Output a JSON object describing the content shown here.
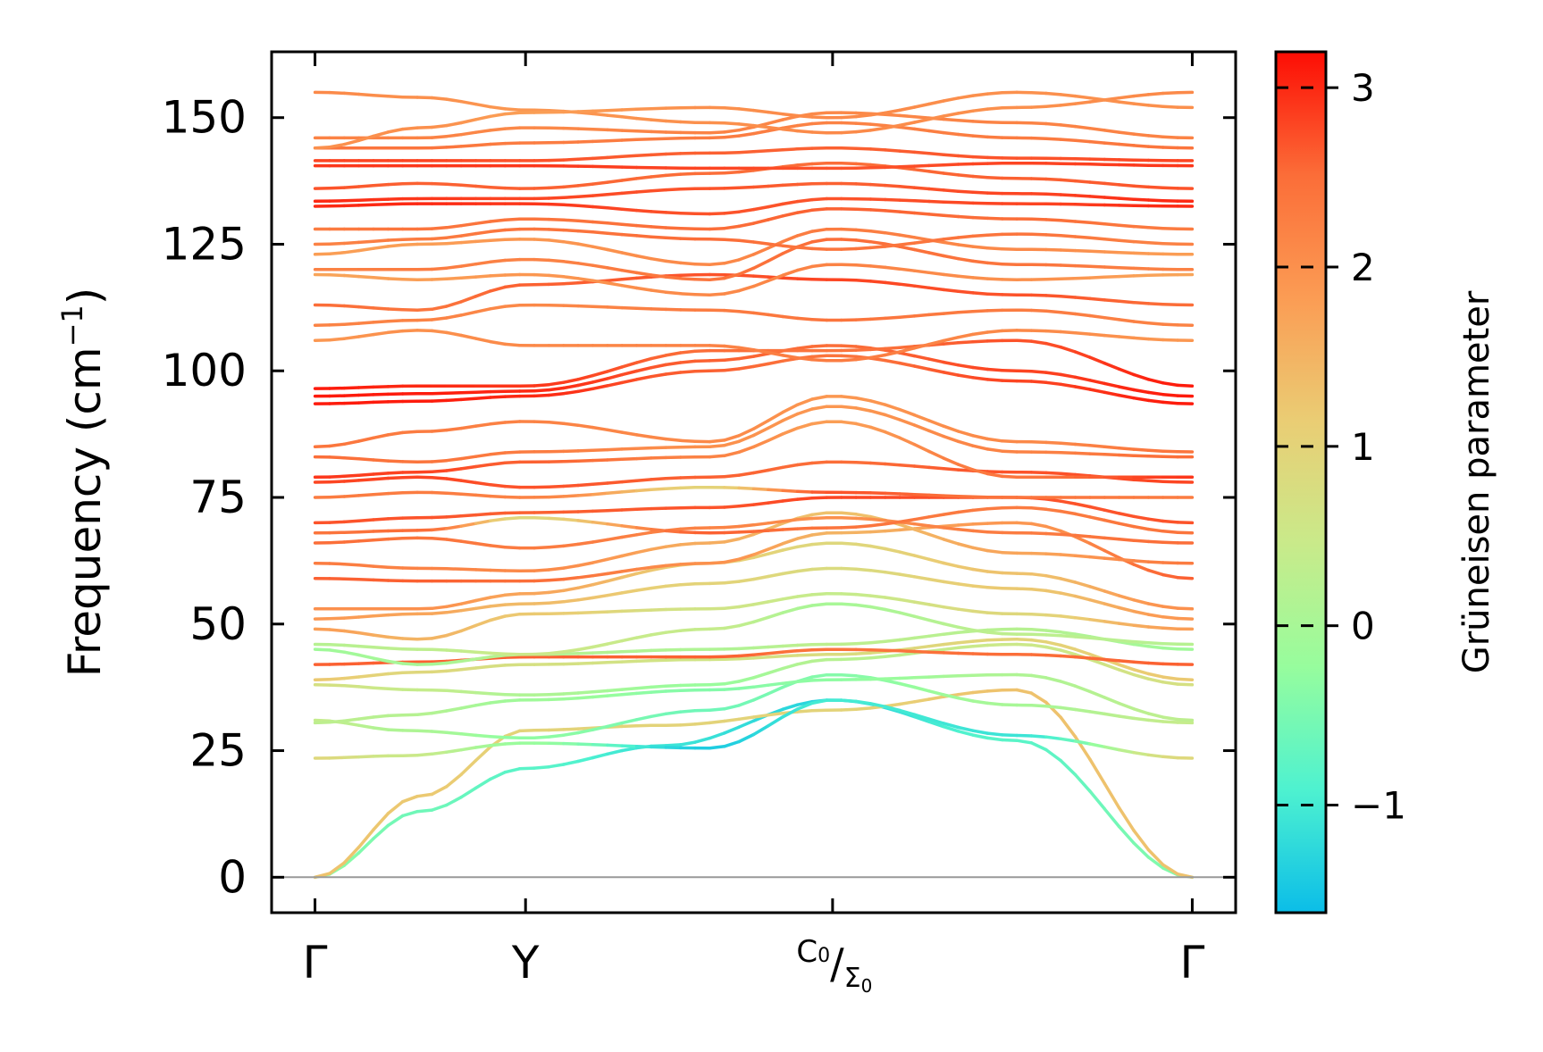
{
  "chart_data": {
    "type": "line",
    "xlabel": "",
    "ylabel": "Frequency (cm",
    "ylabel_sup": "−1",
    "ylabel_close": ")",
    "ylim": [
      -7,
      163
    ],
    "yticks": [
      0,
      25,
      50,
      75,
      100,
      125,
      150
    ],
    "high_symmetry_points": [
      {
        "label": "Γ",
        "pos": 0.0
      },
      {
        "label": "Y",
        "pos": 0.24
      },
      {
        "label": "C",
        "sub": "0",
        "label2": "Σ",
        "sub2": "0",
        "separator": "/",
        "pos": 0.59
      },
      {
        "label": "Γ",
        "pos": 1.0
      }
    ],
    "grid": false,
    "colorbar": {
      "label": "Grüneisen parameter",
      "range": [
        -1.6,
        3.2
      ],
      "ticks": [
        -1,
        0,
        1,
        2,
        3
      ],
      "tick_labels": [
        "−1",
        "0",
        "1",
        "2",
        "3"
      ],
      "colormap": [
        "#0bbde8",
        "#4ef2d0",
        "#97fd9d",
        "#c9ea8a",
        "#eacd74",
        "#fb9c54",
        "#fb6d38",
        "#fd0d04"
      ]
    },
    "series": [
      {
        "x": [
          0,
          0.12,
          0.24,
          0.4,
          0.59,
          0.8,
          1.0
        ],
        "y": [
          0,
          13,
          21.5,
          26,
          35,
          27,
          0
        ],
        "g": [
          -0.3,
          -0.6,
          -0.8,
          -1.1,
          -1.3,
          -0.8,
          -0.4
        ]
      },
      {
        "x": [
          0,
          0.12,
          0.24,
          0.4,
          0.59,
          0.8,
          1.0
        ],
        "y": [
          0,
          16,
          29,
          30,
          33,
          37,
          0
        ],
        "g": [
          1.3,
          1.2,
          1.0,
          1.0,
          1.0,
          1.3,
          1.3
        ]
      },
      {
        "x": [
          0,
          0.1,
          0.24,
          0.45,
          0.59,
          0.8,
          1.0
        ],
        "y": [
          23.5,
          24,
          26.5,
          25.5,
          35,
          28,
          23.5
        ],
        "g": [
          0.9,
          0.5,
          -0.2,
          -1.4,
          -1.0,
          -1.1,
          0.9
        ]
      },
      {
        "x": [
          0,
          0.1,
          0.24,
          0.45,
          0.59,
          0.8,
          1.0
        ],
        "y": [
          31,
          29,
          27.5,
          33,
          40,
          34,
          30.5
        ],
        "g": [
          0.4,
          0.1,
          -0.3,
          -0.6,
          -0.4,
          0.0,
          0.4
        ]
      },
      {
        "x": [
          0,
          0.1,
          0.24,
          0.45,
          0.59,
          0.8,
          1.0
        ],
        "y": [
          30.5,
          32,
          35,
          37,
          39,
          40,
          31
        ],
        "g": [
          0.3,
          0.2,
          -0.1,
          -0.4,
          -0.3,
          0.1,
          0.3
        ]
      },
      {
        "x": [
          0,
          0.12,
          0.24,
          0.45,
          0.59,
          0.8,
          1.0
        ],
        "y": [
          38,
          37,
          36,
          38,
          43,
          46,
          38
        ],
        "g": [
          0.7,
          0.4,
          0.1,
          -0.2,
          0.2,
          0.5,
          0.7
        ]
      },
      {
        "x": [
          0,
          0.12,
          0.24,
          0.45,
          0.59,
          0.8,
          1.0
        ],
        "y": [
          39,
          40.5,
          42,
          43,
          44,
          47,
          39
        ],
        "g": [
          1.2,
          0.9,
          0.7,
          0.6,
          0.8,
          1.0,
          1.2
        ]
      },
      {
        "x": [
          0,
          0.12,
          0.24,
          0.45,
          0.59,
          0.8,
          1.0
        ],
        "y": [
          42,
          42.5,
          43.5,
          43.5,
          45,
          44,
          42
        ],
        "g": [
          2.6,
          2.6,
          2.6,
          2.6,
          2.4,
          2.5,
          2.6
        ]
      },
      {
        "x": [
          0,
          0.12,
          0.24,
          0.45,
          0.59,
          0.8,
          1.0
        ],
        "y": [
          45,
          42,
          44,
          45,
          46,
          49,
          45
        ],
        "g": [
          -0.1,
          0.0,
          0.2,
          0.1,
          0.3,
          0.2,
          -0.1
        ]
      },
      {
        "x": [
          0,
          0.12,
          0.24,
          0.45,
          0.59,
          0.8,
          1.0
        ],
        "y": [
          46,
          45,
          44,
          49,
          54,
          48,
          46
        ],
        "g": [
          0.2,
          0.3,
          0.5,
          0.4,
          0.0,
          0.3,
          0.2
        ]
      },
      {
        "x": [
          0,
          0.12,
          0.24,
          0.45,
          0.59,
          0.8,
          1.0
        ],
        "y": [
          49,
          47,
          52,
          53,
          56,
          52,
          49
        ],
        "g": [
          1.8,
          1.5,
          1.2,
          0.6,
          0.4,
          0.9,
          1.8
        ]
      },
      {
        "x": [
          0,
          0.12,
          0.24,
          0.45,
          0.59,
          0.8,
          1.0
        ],
        "y": [
          51,
          52,
          54,
          58,
          61,
          57,
          51
        ],
        "g": [
          1.9,
          1.7,
          1.4,
          1.0,
          0.8,
          1.2,
          1.9
        ]
      },
      {
        "x": [
          0,
          0.12,
          0.24,
          0.45,
          0.59,
          0.8,
          1.0
        ],
        "y": [
          53,
          53,
          56,
          62,
          66,
          60,
          53
        ],
        "g": [
          2.0,
          2.0,
          1.7,
          1.1,
          0.9,
          1.3,
          2.0
        ]
      },
      {
        "x": [
          0,
          0.12,
          0.24,
          0.45,
          0.59,
          0.8,
          1.0
        ],
        "y": [
          59,
          58.5,
          58.5,
          62,
          68,
          70,
          59
        ],
        "g": [
          2.6,
          2.6,
          2.5,
          2.0,
          1.5,
          1.9,
          2.6
        ]
      },
      {
        "x": [
          0,
          0.12,
          0.24,
          0.45,
          0.59,
          0.8,
          1.0
        ],
        "y": [
          62,
          61,
          60.5,
          66,
          72,
          64,
          62
        ],
        "g": [
          2.3,
          2.2,
          2.1,
          1.6,
          1.3,
          1.7,
          2.3
        ]
      },
      {
        "x": [
          0,
          0.12,
          0.24,
          0.45,
          0.59,
          0.8,
          1.0
        ],
        "y": [
          66,
          67,
          65,
          69,
          71,
          68,
          66
        ],
        "g": [
          2.5,
          2.4,
          2.3,
          2.2,
          2.0,
          2.3,
          2.5
        ]
      },
      {
        "x": [
          0,
          0.12,
          0.24,
          0.45,
          0.59,
          0.8,
          1.0
        ],
        "y": [
          68,
          68.5,
          71,
          68,
          69,
          73,
          68
        ],
        "g": [
          2.4,
          2.5,
          0.9,
          2.6,
          2.4,
          2.3,
          2.4
        ]
      },
      {
        "x": [
          0,
          0.12,
          0.24,
          0.45,
          0.59,
          0.8,
          1.0
        ],
        "y": [
          70,
          71,
          72,
          73,
          75,
          75,
          70
        ],
        "g": [
          2.7,
          2.7,
          2.6,
          2.7,
          2.8,
          2.7,
          2.7
        ]
      },
      {
        "x": [
          0,
          0.12,
          0.24,
          0.45,
          0.59,
          0.8,
          1.0
        ],
        "y": [
          75,
          76,
          75,
          77,
          76,
          75,
          75
        ],
        "g": [
          2.3,
          2.3,
          2.2,
          1.0,
          2.7,
          2.4,
          2.3
        ]
      },
      {
        "x": [
          0,
          0.12,
          0.24,
          0.45,
          0.59,
          0.8,
          1.0
        ],
        "y": [
          78,
          79,
          77,
          79,
          82,
          80,
          78
        ],
        "g": [
          2.8,
          2.8,
          2.7,
          2.6,
          2.5,
          2.7,
          2.8
        ]
      },
      {
        "x": [
          0,
          0.12,
          0.24,
          0.45,
          0.59,
          0.8,
          1.0
        ],
        "y": [
          79,
          80,
          82,
          83,
          90,
          79,
          79
        ],
        "g": [
          2.9,
          2.8,
          2.6,
          2.2,
          1.8,
          2.4,
          2.9
        ]
      },
      {
        "x": [
          0,
          0.12,
          0.24,
          0.45,
          0.59,
          0.8,
          1.0
        ],
        "y": [
          83,
          82,
          84,
          85,
          93,
          84,
          83
        ],
        "g": [
          2.5,
          2.4,
          2.3,
          2.0,
          1.9,
          2.2,
          2.5
        ]
      },
      {
        "x": [
          0,
          0.12,
          0.24,
          0.45,
          0.59,
          0.8,
          1.0
        ],
        "y": [
          85,
          88,
          90,
          86,
          95,
          86,
          84
        ],
        "g": [
          2.4,
          2.3,
          2.2,
          2.1,
          1.9,
          2.1,
          2.4
        ]
      },
      {
        "x": [
          0,
          0.12,
          0.24,
          0.45,
          0.59,
          0.8,
          1.0
        ],
        "y": [
          93.5,
          94,
          95,
          100,
          103,
          98,
          93.5
        ],
        "g": [
          3.1,
          3.1,
          3.0,
          2.6,
          2.4,
          2.8,
          3.1
        ]
      },
      {
        "x": [
          0,
          0.12,
          0.24,
          0.45,
          0.59,
          0.8,
          1.0
        ],
        "y": [
          95,
          95.5,
          96,
          102,
          105,
          100,
          95
        ],
        "g": [
          3.1,
          3.1,
          3.0,
          2.6,
          2.5,
          2.8,
          3.1
        ]
      },
      {
        "x": [
          0,
          0.12,
          0.24,
          0.45,
          0.59,
          0.8,
          1.0
        ],
        "y": [
          96.5,
          97,
          97,
          104,
          104,
          106,
          97
        ],
        "g": [
          3.1,
          3.0,
          2.9,
          2.5,
          2.4,
          2.7,
          3.1
        ]
      },
      {
        "x": [
          0,
          0.12,
          0.24,
          0.45,
          0.59,
          0.8,
          1.0
        ],
        "y": [
          106,
          108,
          105,
          105,
          102,
          108,
          106
        ],
        "g": [
          1.9,
          2.0,
          2.1,
          2.2,
          2.3,
          2.1,
          1.9
        ]
      },
      {
        "x": [
          0,
          0.12,
          0.24,
          0.45,
          0.59,
          0.8,
          1.0
        ],
        "y": [
          109,
          110,
          113,
          112,
          110,
          112,
          109
        ],
        "g": [
          2.2,
          2.2,
          2.1,
          2.3,
          2.4,
          2.3,
          2.2
        ]
      },
      {
        "x": [
          0,
          0.12,
          0.24,
          0.45,
          0.59,
          0.8,
          1.0
        ],
        "y": [
          113,
          112,
          117,
          119,
          118,
          115,
          113
        ],
        "g": [
          2.5,
          2.4,
          2.6,
          2.7,
          2.8,
          2.7,
          2.5
        ]
      },
      {
        "x": [
          0,
          0.12,
          0.24,
          0.45,
          0.59,
          0.8,
          1.0
        ],
        "y": [
          119,
          118,
          119,
          115,
          121,
          118,
          119
        ],
        "g": [
          1.7,
          1.8,
          1.9,
          2.1,
          2.2,
          2.0,
          1.7
        ]
      },
      {
        "x": [
          0,
          0.12,
          0.24,
          0.45,
          0.59,
          0.8,
          1.0
        ],
        "y": [
          120,
          120,
          122,
          118,
          126,
          121,
          120
        ],
        "g": [
          2.2,
          2.3,
          2.2,
          2.4,
          2.5,
          2.4,
          2.2
        ]
      },
      {
        "x": [
          0,
          0.12,
          0.24,
          0.45,
          0.59,
          0.8,
          1.0
        ],
        "y": [
          123,
          125,
          126,
          121,
          128,
          124,
          123
        ],
        "g": [
          1.8,
          1.8,
          1.9,
          2.1,
          2.3,
          2.1,
          1.8
        ]
      },
      {
        "x": [
          0,
          0.12,
          0.24,
          0.45,
          0.59,
          0.8,
          1.0
        ],
        "y": [
          125,
          126,
          128,
          126,
          124,
          127,
          125
        ],
        "g": [
          2.2,
          2.3,
          2.4,
          2.5,
          2.4,
          2.4,
          2.2
        ]
      },
      {
        "x": [
          0,
          0.12,
          0.24,
          0.45,
          0.59,
          0.8,
          1.0
        ],
        "y": [
          128,
          128,
          130,
          128,
          132,
          130,
          128
        ],
        "g": [
          2.3,
          2.4,
          2.4,
          2.5,
          2.6,
          2.5,
          2.3
        ]
      },
      {
        "x": [
          0,
          0.12,
          0.24,
          0.45,
          0.59,
          0.8,
          1.0
        ],
        "y": [
          132.5,
          133,
          133,
          131,
          134,
          133,
          132.5
        ],
        "g": [
          3.0,
          3.0,
          2.9,
          2.7,
          2.7,
          2.8,
          3.0
        ]
      },
      {
        "x": [
          0,
          0.12,
          0.24,
          0.45,
          0.59,
          0.8,
          1.0
        ],
        "y": [
          133.5,
          134,
          134,
          136,
          137,
          135,
          133.5
        ],
        "g": [
          3.0,
          2.9,
          2.8,
          2.7,
          2.6,
          2.8,
          3.0
        ]
      },
      {
        "x": [
          0,
          0.12,
          0.24,
          0.45,
          0.59,
          0.8,
          1.0
        ],
        "y": [
          136,
          137,
          136,
          139,
          141,
          138,
          136
        ],
        "g": [
          2.7,
          2.6,
          2.6,
          2.5,
          2.5,
          2.6,
          2.7
        ]
      },
      {
        "x": [
          0,
          0.12,
          0.24,
          0.45,
          0.59,
          0.8,
          1.0
        ],
        "y": [
          140.5,
          140.5,
          140.5,
          140,
          140,
          141,
          140.5
        ],
        "g": [
          2.9,
          2.9,
          2.9,
          2.8,
          2.7,
          2.8,
          2.9
        ]
      },
      {
        "x": [
          0,
          0.12,
          0.24,
          0.45,
          0.59,
          0.8,
          1.0
        ],
        "y": [
          141.5,
          141.5,
          141.5,
          143,
          144,
          142,
          141.5
        ],
        "g": [
          2.8,
          2.8,
          2.7,
          2.6,
          2.6,
          2.7,
          2.8
        ]
      },
      {
        "x": [
          0,
          0.12,
          0.24,
          0.45,
          0.59,
          0.8,
          1.0
        ],
        "y": [
          144,
          144,
          145,
          146,
          149,
          146,
          144
        ],
        "g": [
          2.4,
          2.4,
          2.3,
          2.3,
          2.2,
          2.3,
          2.4
        ]
      },
      {
        "x": [
          0,
          0.12,
          0.24,
          0.45,
          0.59,
          0.8,
          1.0
        ],
        "y": [
          146,
          146,
          148,
          147,
          151,
          149,
          146
        ],
        "g": [
          2.2,
          2.2,
          2.1,
          2.2,
          2.1,
          2.2,
          2.2
        ]
      },
      {
        "x": [
          0,
          0.12,
          0.24,
          0.45,
          0.59,
          0.8,
          1.0
        ],
        "y": [
          155,
          154,
          151.5,
          149,
          147,
          152,
          155
        ],
        "g": [
          2.1,
          2.0,
          1.9,
          2.0,
          2.1,
          2.0,
          2.1
        ]
      },
      {
        "x": [
          0,
          0.12,
          0.24,
          0.45,
          0.59,
          0.8,
          1.0
        ],
        "y": [
          144,
          148,
          151,
          152,
          150,
          155,
          152
        ],
        "g": [
          2.0,
          2.0,
          1.8,
          2.0,
          2.1,
          2.0,
          2.0
        ]
      }
    ]
  }
}
